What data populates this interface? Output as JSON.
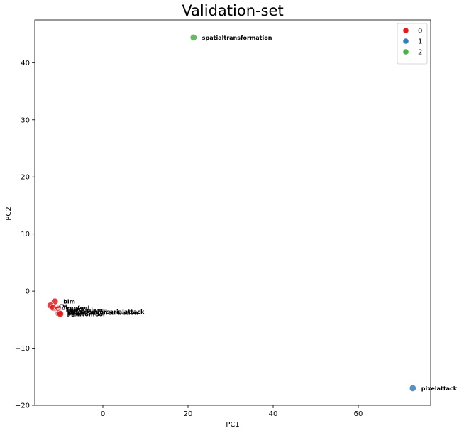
{
  "chart_data": {
    "type": "scatter",
    "title": "Validation-set",
    "xlabel": "PC1",
    "ylabel": "PC2",
    "xlim": [
      -16,
      77
    ],
    "ylim": [
      -20,
      47.5
    ],
    "xticks": [
      0,
      20,
      40,
      60
    ],
    "yticks": [
      -20,
      -10,
      0,
      10,
      20,
      30,
      40
    ],
    "grid": false,
    "legend_placement": "top-right",
    "legend": [
      {
        "label": "0",
        "color": "#e41a1c"
      },
      {
        "label": "1",
        "color": "#377eb8"
      },
      {
        "label": "2",
        "color": "#4daf4a"
      }
    ],
    "points": [
      {
        "label": "bim",
        "x": -11.3,
        "y": -1.8,
        "group": "0"
      },
      {
        "label": "cw",
        "x": -12.3,
        "y": -2.5,
        "group": "0"
      },
      {
        "label": "deepfool",
        "x": -11.7,
        "y": -2.9,
        "group": "0"
      },
      {
        "label": "fgsm",
        "x": -10.5,
        "y": -3.1,
        "group": "0"
      },
      {
        "label": "hopskipjump",
        "x": -10.7,
        "y": -3.3,
        "group": "0"
      },
      {
        "label": "virtualadversarialattack",
        "x": -10.4,
        "y": -3.6,
        "group": "0"
      },
      {
        "label": "pgd",
        "x": -10.4,
        "y": -3.9,
        "group": "0"
      },
      {
        "label": "universalperturbation",
        "x": -10.2,
        "y": -3.8,
        "group": "0"
      },
      {
        "label": "newtonfool",
        "x": -10.0,
        "y": -4.0,
        "group": "0"
      },
      {
        "label": "pixelattack",
        "x": 72.8,
        "y": -17.0,
        "group": "1"
      },
      {
        "label": "spatialtransformation",
        "x": 21.3,
        "y": 44.4,
        "group": "2"
      }
    ]
  }
}
